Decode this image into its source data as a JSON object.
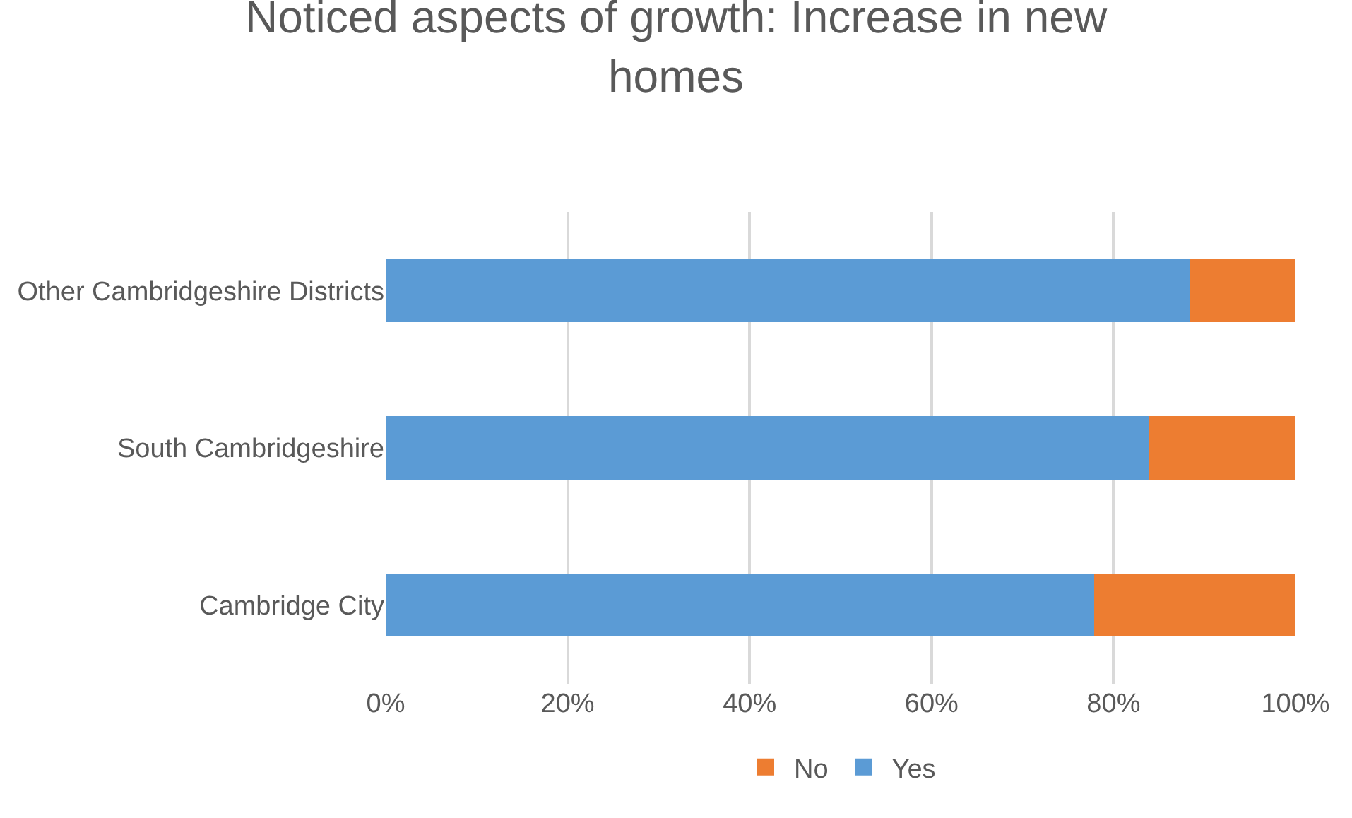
{
  "chart_data": {
    "type": "bar",
    "orientation": "horizontal",
    "stacked": true,
    "title": "Noticed aspects of growth: Increase in new\nhomes",
    "categories": [
      "Other Cambridgeshire Districts",
      "South Cambridgeshire",
      "Cambridge City"
    ],
    "series": [
      {
        "name": "Yes",
        "color": "#5b9bd5",
        "values": [
          88.4,
          83.9,
          77.9
        ]
      },
      {
        "name": "No",
        "color": "#ed7d31",
        "values": [
          11.6,
          16.1,
          22.1
        ]
      }
    ],
    "xlim": [
      0,
      100
    ],
    "xticks": [
      {
        "value": 0,
        "label": "0%"
      },
      {
        "value": 20,
        "label": "20%"
      },
      {
        "value": 40,
        "label": "40%"
      },
      {
        "value": 60,
        "label": "60%"
      },
      {
        "value": 80,
        "label": "80%"
      },
      {
        "value": 100,
        "label": "100%"
      }
    ],
    "grid": "x",
    "legend": "bottom"
  }
}
